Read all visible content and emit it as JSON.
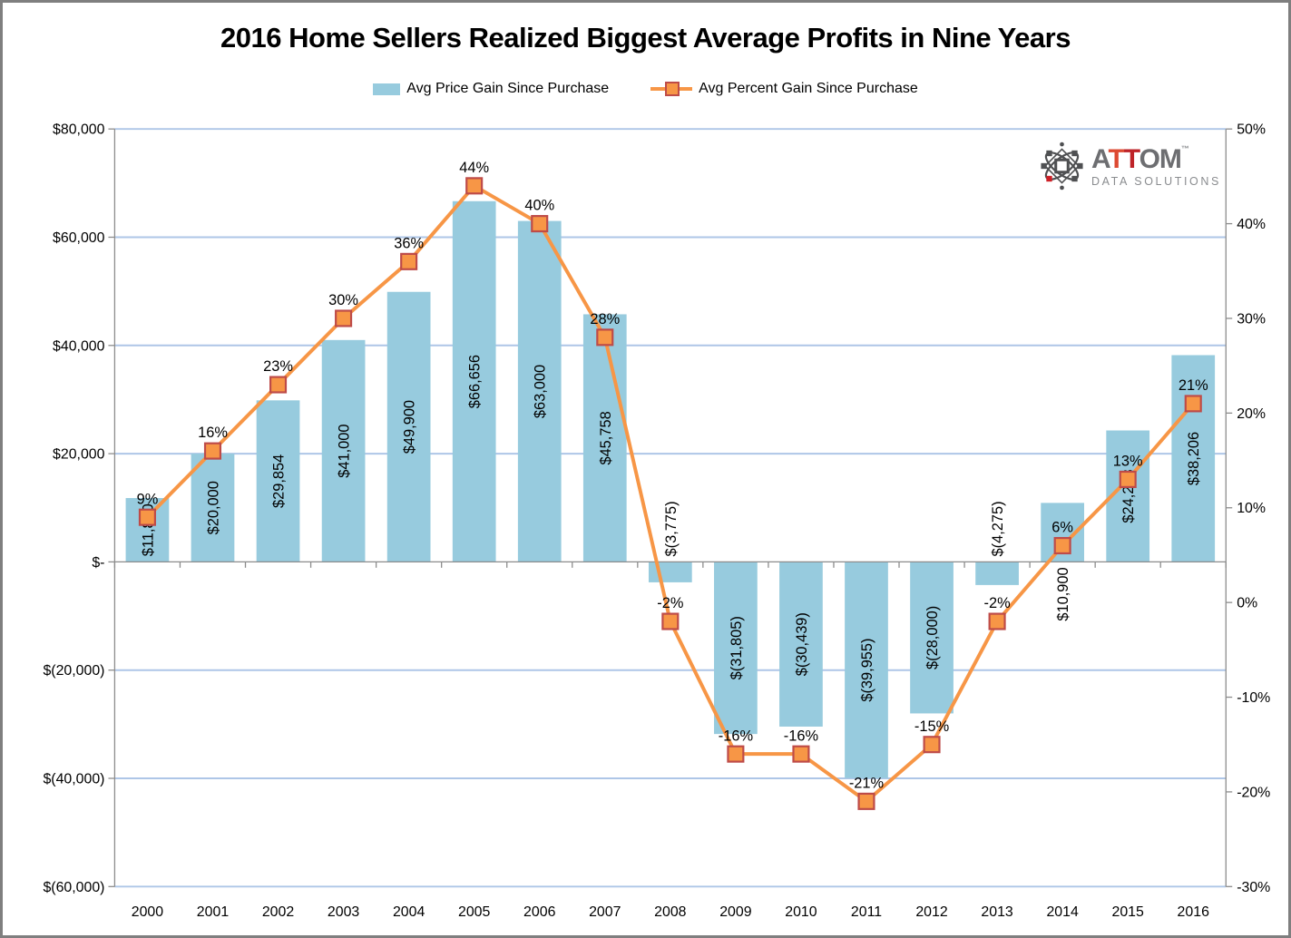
{
  "title": "2016 Home Sellers Realized Biggest Average Profits in Nine Years",
  "colors": {
    "bar_fill": "#97CBDE",
    "line": "#F79646",
    "marker_fill": "#F79646",
    "marker_border": "#BE4B48",
    "gridline": "#AEC6E7",
    "axis": "#8C8C8C",
    "text": "#000000"
  },
  "legend": [
    {
      "label": "Avg Price Gain Since Purchase",
      "swatch": "bar-swatch"
    },
    {
      "label": "Avg Percent Gain Since Purchase",
      "swatch": "line-marker-swatch"
    }
  ],
  "logo": {
    "a": "A",
    "t1": "T",
    "t2": "T",
    "om": "OM",
    "tm": "™",
    "subtitle": "DATA SOLUTIONS",
    "icon": "atom-icon"
  },
  "chart_data": {
    "type": "combo-bar-line",
    "title": "2016 Home Sellers Realized Biggest Average Profits in Nine Years",
    "categories": [
      "2000",
      "2001",
      "2002",
      "2003",
      "2004",
      "2005",
      "2006",
      "2007",
      "2008",
      "2009",
      "2010",
      "2011",
      "2012",
      "2013",
      "2014",
      "2015",
      "2016"
    ],
    "series": [
      {
        "name": "Avg Price Gain Since Purchase",
        "chart_type": "bar",
        "axis": "left",
        "values": [
          11800,
          20000,
          29854,
          41000,
          49900,
          66656,
          63000,
          45758,
          -3775,
          -31805,
          -30439,
          -39955,
          -28000,
          -4275,
          10900,
          24288,
          38206
        ],
        "data_labels": [
          "$11,800",
          "$20,000",
          "$29,854",
          "$41,000",
          "$49,900",
          "$66,656",
          "$63,000",
          "$45,758",
          "$(3,775)",
          "$(31,805)",
          "$(30,439)",
          "$(39,955)",
          "$(28,000)",
          "$(4,275)",
          "$10,900",
          "$24,288",
          "$38,206"
        ],
        "label_across_axis": [
          false,
          false,
          false,
          false,
          false,
          false,
          false,
          false,
          true,
          false,
          false,
          false,
          false,
          true,
          true,
          false,
          false
        ]
      },
      {
        "name": "Avg Percent Gain Since Purchase",
        "chart_type": "line",
        "axis": "right",
        "values": [
          9,
          16,
          23,
          30,
          36,
          44,
          40,
          28,
          -2,
          -16,
          -16,
          -21,
          -15,
          -2,
          6,
          13,
          21
        ],
        "data_labels": [
          "9%",
          "16%",
          "23%",
          "30%",
          "36%",
          "44%",
          "40%",
          "28%",
          "-2%",
          "-16%",
          "-16%",
          "-21%",
          "-15%",
          "-2%",
          "6%",
          "13%",
          "21%"
        ]
      }
    ],
    "left_axis": {
      "min": -60000,
      "max": 80000,
      "step": 20000,
      "tick_labels": [
        "$80,000",
        "$60,000",
        "$40,000",
        "$20,000",
        "$-",
        "$(20,000)",
        "$(40,000)",
        "$(60,000)"
      ]
    },
    "right_axis": {
      "min": -30,
      "max": 50,
      "step": 10,
      "tick_labels": [
        "50%",
        "40%",
        "30%",
        "20%",
        "10%",
        "0%",
        "-10%",
        "-20%",
        "-30%"
      ]
    },
    "grid": {
      "horizontal": true,
      "source_axis": "left"
    },
    "legend_position": "top"
  }
}
